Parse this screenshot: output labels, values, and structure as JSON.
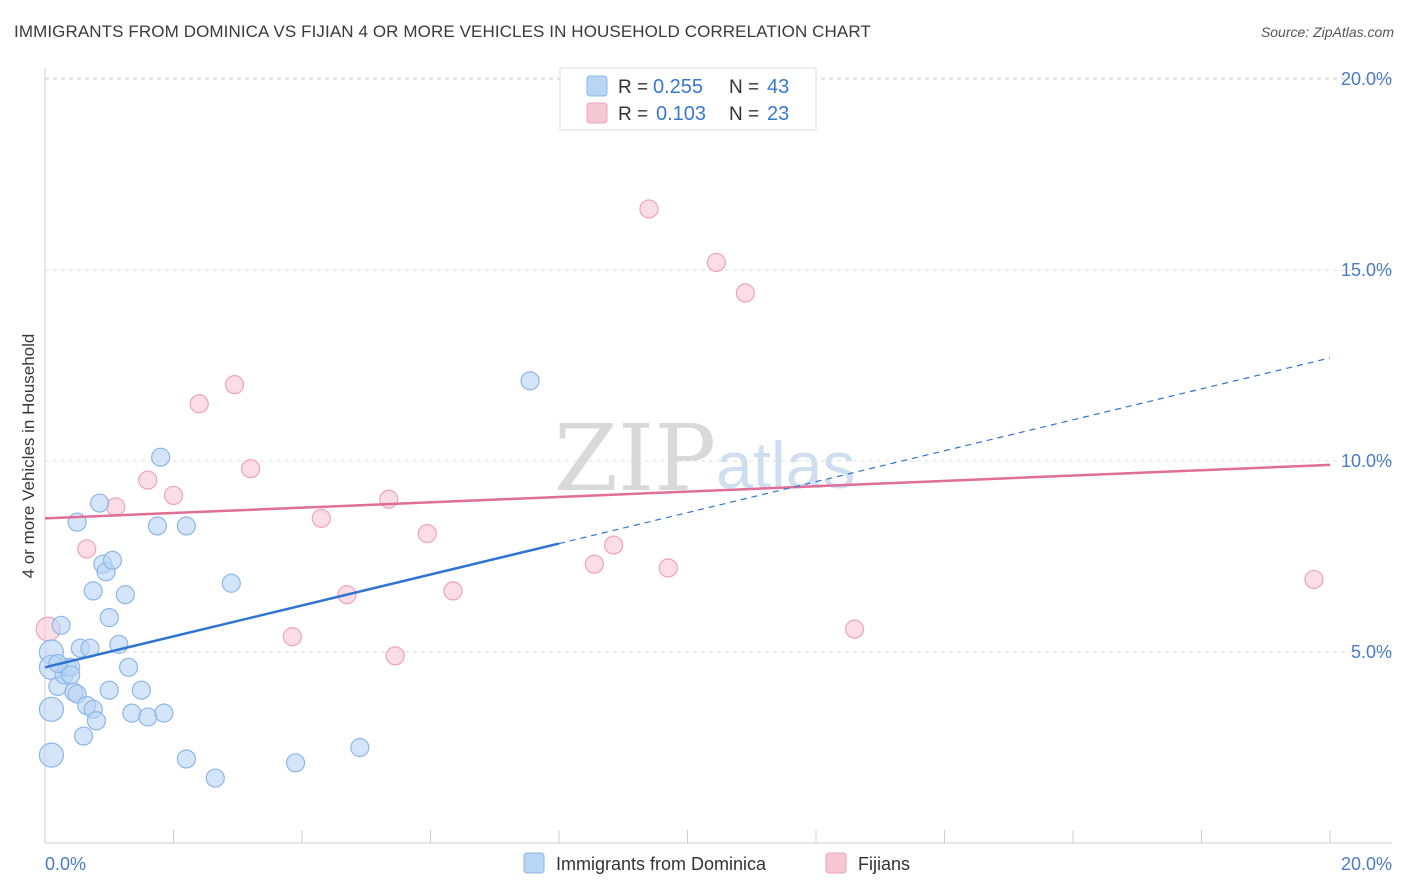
{
  "title": "IMMIGRANTS FROM DOMINICA VS FIJIAN 4 OR MORE VEHICLES IN HOUSEHOLD CORRELATION CHART",
  "source": "Source: ZipAtlas.com",
  "watermark": {
    "zip": "ZIP",
    "atlas": "atlas"
  },
  "colors": {
    "blue_fill": "#b9d4f5",
    "blue_stroke": "#8db6e8",
    "blue_line": "#2f74d0",
    "pink_fill": "#f8c7d6",
    "pink_stroke": "#eea3bb",
    "pink_line": "#e06e97",
    "grid": "#dcdcdc",
    "tick_text": "#4a7cc4"
  },
  "legend": {
    "rows": [
      {
        "r_label": "R =",
        "r_value": "0.255",
        "n_label": "N =",
        "n_value": "43"
      },
      {
        "r_label": "R =",
        "r_value": "0.103",
        "n_label": "N =",
        "n_value": "23"
      }
    ]
  },
  "chart_data": {
    "type": "scatter",
    "title": "IMMIGRANTS FROM DOMINICA VS FIJIAN 4 OR MORE VEHICLES IN HOUSEHOLD CORRELATION CHART",
    "xlabel": "",
    "ylabel": "4 or more Vehicles in Household",
    "xlim": [
      0,
      20
    ],
    "ylim": [
      0,
      20.5
    ],
    "x_tick_labels": [
      "0.0%",
      "20.0%"
    ],
    "y_ticks": [
      5,
      10,
      15,
      20
    ],
    "y_tick_labels": [
      "5.0%",
      "10.0%",
      "15.0%",
      "20.0%"
    ],
    "grid": true,
    "legend_position": "top-center",
    "series": [
      {
        "name": "Immigrants from Dominica",
        "color": "#b9d4f5",
        "r": 0.255,
        "n": 43,
        "trend": {
          "x0": 0,
          "y0": 4.6,
          "x1": 20,
          "y1": 12.7,
          "solid_until_x": 8
        },
        "points": [
          [
            0.1,
            5.0
          ],
          [
            0.1,
            2.3
          ],
          [
            0.1,
            3.5
          ],
          [
            0.1,
            4.6
          ],
          [
            0.2,
            4.1
          ],
          [
            0.25,
            5.7
          ],
          [
            0.3,
            4.4
          ],
          [
            0.35,
            4.6
          ],
          [
            0.4,
            4.6
          ],
          [
            0.4,
            4.4
          ],
          [
            0.45,
            3.95
          ],
          [
            0.5,
            3.9
          ],
          [
            0.5,
            8.4
          ],
          [
            0.55,
            5.1
          ],
          [
            0.6,
            2.8
          ],
          [
            0.65,
            3.6
          ],
          [
            0.7,
            5.1
          ],
          [
            0.75,
            6.6
          ],
          [
            0.75,
            3.5
          ],
          [
            0.8,
            3.2
          ],
          [
            0.85,
            8.9
          ],
          [
            0.9,
            7.3
          ],
          [
            0.95,
            7.1
          ],
          [
            1.0,
            5.9
          ],
          [
            1.0,
            4.0
          ],
          [
            1.05,
            7.4
          ],
          [
            1.15,
            5.2
          ],
          [
            1.25,
            6.5
          ],
          [
            1.3,
            4.6
          ],
          [
            1.35,
            3.4
          ],
          [
            1.5,
            4.0
          ],
          [
            1.6,
            3.3
          ],
          [
            1.75,
            8.3
          ],
          [
            1.8,
            10.1
          ],
          [
            1.85,
            3.4
          ],
          [
            2.2,
            8.3
          ],
          [
            2.2,
            2.2
          ],
          [
            2.65,
            1.7
          ],
          [
            2.9,
            6.8
          ],
          [
            3.9,
            2.1
          ],
          [
            4.9,
            2.5
          ],
          [
            7.55,
            12.1
          ],
          [
            0.2,
            4.7
          ]
        ]
      },
      {
        "name": "Fijians",
        "color": "#f8c7d6",
        "r": 0.103,
        "n": 23,
        "trend": {
          "x0": 0,
          "y0": 8.5,
          "x1": 20,
          "y1": 9.9,
          "solid_until_x": 20
        },
        "points": [
          [
            0.05,
            5.6
          ],
          [
            0.65,
            7.7
          ],
          [
            1.1,
            8.8
          ],
          [
            1.6,
            9.5
          ],
          [
            2.0,
            9.1
          ],
          [
            2.4,
            11.5
          ],
          [
            2.95,
            12.0
          ],
          [
            3.2,
            9.8
          ],
          [
            3.85,
            5.4
          ],
          [
            4.3,
            8.5
          ],
          [
            4.7,
            6.5
          ],
          [
            5.35,
            9.0
          ],
          [
            5.45,
            4.9
          ],
          [
            5.95,
            8.1
          ],
          [
            6.35,
            6.6
          ],
          [
            8.55,
            7.3
          ],
          [
            8.85,
            7.8
          ],
          [
            9.4,
            16.6
          ],
          [
            9.7,
            7.2
          ],
          [
            10.45,
            15.2
          ],
          [
            10.9,
            14.4
          ],
          [
            12.6,
            5.6
          ],
          [
            19.75,
            6.9
          ]
        ]
      }
    ]
  }
}
